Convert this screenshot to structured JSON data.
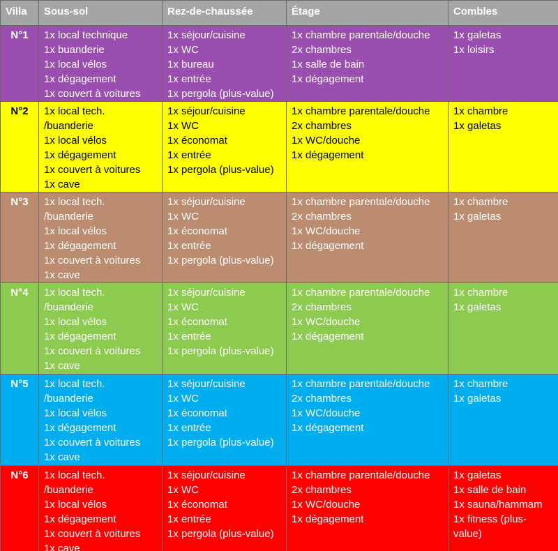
{
  "table": {
    "header": [
      "Villa",
      "Sous-sol",
      "Rez-de-chaussée",
      "Étage",
      "Combles"
    ],
    "rows": [
      {
        "villa": "N°1",
        "cells": [
          [
            "1x local technique",
            "1x buanderie",
            "1x local vélos",
            "1x dégagement",
            "1x couvert à voitures"
          ],
          [
            "1x séjour/cuisine",
            "1x WC",
            "1x bureau",
            "1x entrée",
            "1x pergola (plus-value)"
          ],
          [
            "1x chambre parentale/douche",
            "2x chambres",
            "1x salle de bain",
            "1x dégagement"
          ],
          [
            "1x galetas",
            "1x loisirs"
          ]
        ]
      },
      {
        "villa": "N°2",
        "cells": [
          [
            "1x local tech.",
            "/buanderie",
            "1x local vélos",
            "1x dégagement",
            "1x couvert à voitures",
            "1x cave"
          ],
          [
            "1x séjour/cuisine",
            "1x WC",
            "1x économat",
            "1x entrée",
            "1x pergola (plus-value)"
          ],
          [
            "1x chambre parentale/douche",
            "2x chambres",
            "1x WC/douche",
            "1x dégagement"
          ],
          [
            "1x chambre",
            "1x galetas"
          ]
        ]
      },
      {
        "villa": "N°3",
        "cells": [
          [
            "1x local tech.",
            "/buanderie",
            "1x local vélos",
            "1x dégagement",
            "1x couvert à voitures",
            "1x cave"
          ],
          [
            "1x séjour/cuisine",
            "1x WC",
            "1x économat",
            "1x entrée",
            "1x pergola (plus-value)"
          ],
          [
            "1x chambre parentale/douche",
            "2x chambres",
            "1x WC/douche",
            "1x dégagement"
          ],
          [
            "1x chambre",
            "1x galetas"
          ]
        ]
      },
      {
        "villa": "N°4",
        "cells": [
          [
            "1x local tech.",
            "/buanderie",
            "1x local vélos",
            "1x dégagement",
            "1x couvert à voitures",
            "1x cave"
          ],
          [
            "1x séjour/cuisine",
            "1x WC",
            "1x économat",
            "1x entrée",
            "1x pergola (plus-value)"
          ],
          [
            "1x chambre parentale/douche",
            "2x chambres",
            "1x WC/douche",
            "1x dégagement"
          ],
          [
            "1x chambre",
            "1x galetas"
          ]
        ]
      },
      {
        "villa": "N°5",
        "cells": [
          [
            "1x local tech.",
            "/buanderie",
            "1x local vélos",
            "1x dégagement",
            "1x couvert à voitures",
            "1x cave"
          ],
          [
            "1x séjour/cuisine",
            "1x WC",
            "1x économat",
            "1x entrée",
            "1x pergola (plus-value)"
          ],
          [
            "1x chambre parentale/douche",
            "2x chambres",
            "1x WC/douche",
            "1x dégagement"
          ],
          [
            "1x chambre",
            "1x galetas"
          ]
        ]
      },
      {
        "villa": "N°6",
        "cells": [
          [
            "1x local tech.",
            "/buanderie",
            "1x local vélos",
            "1x dégagement",
            "1x couvert à voitures",
            "1x cave"
          ],
          [
            "1x séjour/cuisine",
            "1x WC",
            "1x économat",
            "1x entrée",
            "1x pergola (plus-value)"
          ],
          [
            "1x chambre parentale/douche",
            "2x chambres",
            "1x WC/douche",
            "1x dégagement"
          ],
          [
            "1x galetas",
            "1x salle de bain",
            "1x sauna/hammam",
            "1x fitness (plus-",
            "value)"
          ]
        ]
      }
    ]
  }
}
